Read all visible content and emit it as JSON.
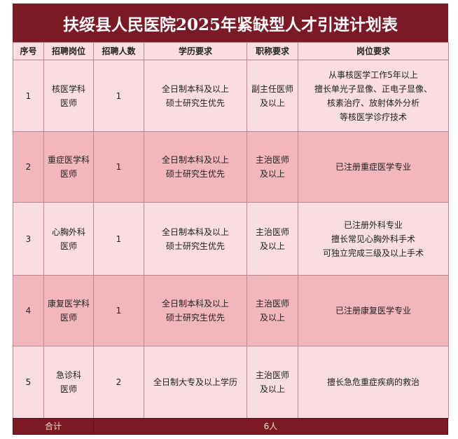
{
  "header": {
    "title": "扶绥县人民医院2025年紧缺型人才引进计划表"
  },
  "table": {
    "columns": [
      "序号",
      "招聘岗位",
      "招聘人数",
      "学历要求",
      "职称要求",
      "岗位要求"
    ],
    "rows": [
      [
        [
          "1"
        ],
        [
          "核医学科",
          "医师"
        ],
        [
          "1"
        ],
        [
          "全日制本科及以上",
          "硕士研究生优先"
        ],
        [
          "副主任医师",
          "及以上"
        ],
        [
          "从事核医学工作5年以上",
          "擅长单光子显像、正电子显像、",
          "核素治疗、放射体外分析",
          "等核医学诊疗技术"
        ]
      ],
      [
        [
          "2"
        ],
        [
          "重症医学科",
          "医师"
        ],
        [
          "1"
        ],
        [
          "全日制本科及以上",
          "硕士研究生优先"
        ],
        [
          "主治医师",
          "及以上"
        ],
        [
          "已注册重症医学专业"
        ]
      ],
      [
        [
          "3"
        ],
        [
          "心胸外科",
          "医师"
        ],
        [
          "1"
        ],
        [
          "全日制本科及以上",
          "硕士研究生优先"
        ],
        [
          "主治医师",
          "及以上"
        ],
        [
          "已注册外科专业",
          "擅长常见心胸外科手术",
          "可独立完成三级及以上手术"
        ]
      ],
      [
        [
          "4"
        ],
        [
          "康复医学科",
          "医师"
        ],
        [
          "1"
        ],
        [
          "全日制本科及以上",
          "硕士研究生优先"
        ],
        [
          "主治医师",
          "及以上"
        ],
        [
          "已注册康复医学专业"
        ]
      ],
      [
        [
          "5"
        ],
        [
          "急诊科",
          "医师"
        ],
        [
          "2"
        ],
        [
          "全日制大专及以上学历"
        ],
        [
          "主治医师",
          "及以上"
        ],
        [
          "擅长急危重症疾病的救治"
        ]
      ]
    ]
  },
  "footer": {
    "label": "合计",
    "total": "6人"
  }
}
